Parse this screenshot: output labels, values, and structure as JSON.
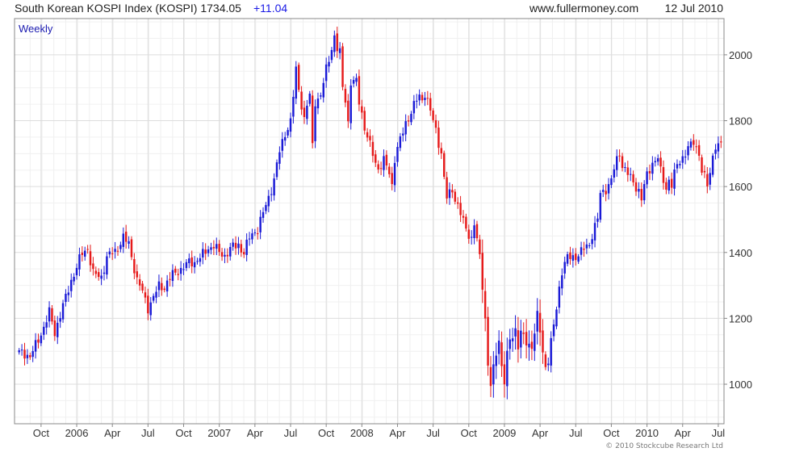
{
  "header": {
    "title": "South Korean KOSPI Index (KOSPI) 1734.05",
    "change": "+11.04",
    "site": "www.fullermoney.com",
    "date": "12 Jul 2010"
  },
  "footer": {
    "copyright": "© 2010 Stockcube Research Ltd"
  },
  "colors": {
    "up": "#1a1ad6",
    "down": "#e61a1a",
    "grid": "#dddddd",
    "frame": "#888888",
    "change": "#1a1ae6",
    "period_label": "#1a1ab0"
  },
  "chart_data": {
    "type": "candlestick",
    "period_label": "Weekly",
    "ylim": [
      880,
      2110
    ],
    "y_ticks": [
      1000,
      1200,
      1400,
      1600,
      1800,
      2000
    ],
    "y_tick_labels": [
      "1000",
      "1200",
      "1400",
      "1600",
      "1800",
      "2000"
    ],
    "x_tick_labels": [
      "Oct",
      "2006",
      "Apr",
      "Jul",
      "Oct",
      "2007",
      "Apr",
      "Jul",
      "Oct",
      "2008",
      "Apr",
      "Jul",
      "Oct",
      "2009",
      "Apr",
      "Jul",
      "Oct",
      "2010",
      "Apr",
      "Jul"
    ],
    "x_tick_weeks": [
      8,
      21,
      34,
      47,
      60,
      73,
      86,
      99,
      112,
      125,
      138,
      151,
      164,
      177,
      190,
      203,
      216,
      229,
      242,
      255
    ],
    "grid": true,
    "close_path": [
      [
        0,
        1095
      ],
      [
        4,
        1080
      ],
      [
        8,
        1160
      ],
      [
        11,
        1215
      ],
      [
        13,
        1150
      ],
      [
        16,
        1240
      ],
      [
        19,
        1320
      ],
      [
        21,
        1355
      ],
      [
        23,
        1390
      ],
      [
        25,
        1410
      ],
      [
        27,
        1340
      ],
      [
        30,
        1330
      ],
      [
        32,
        1380
      ],
      [
        35,
        1400
      ],
      [
        38,
        1450
      ],
      [
        40,
        1430
      ],
      [
        43,
        1310
      ],
      [
        45,
        1275
      ],
      [
        47,
        1235
      ],
      [
        49,
        1270
      ],
      [
        51,
        1300
      ],
      [
        53,
        1290
      ],
      [
        56,
        1330
      ],
      [
        58,
        1350
      ],
      [
        60,
        1360
      ],
      [
        62,
        1370
      ],
      [
        64,
        1365
      ],
      [
        66,
        1380
      ],
      [
        69,
        1420
      ],
      [
        71,
        1425
      ],
      [
        73,
        1395
      ],
      [
        75,
        1385
      ],
      [
        78,
        1420
      ],
      [
        80,
        1430
      ],
      [
        82,
        1400
      ],
      [
        84,
        1440
      ],
      [
        87,
        1470
      ],
      [
        90,
        1550
      ],
      [
        93,
        1620
      ],
      [
        95,
        1700
      ],
      [
        97,
        1760
      ],
      [
        99,
        1800
      ],
      [
        101,
        1960
      ],
      [
        102,
        1900
      ],
      [
        104,
        1800
      ],
      [
        105,
        1840
      ],
      [
        106,
        1870
      ],
      [
        107,
        1720
      ],
      [
        108,
        1860
      ],
      [
        110,
        1880
      ],
      [
        112,
        1960
      ],
      [
        114,
        2020
      ],
      [
        115,
        2050
      ],
      [
        116,
        2010
      ],
      [
        117,
        2000
      ],
      [
        118,
        1900
      ],
      [
        119,
        1870
      ],
      [
        120,
        1800
      ],
      [
        121,
        1920
      ],
      [
        123,
        1920
      ],
      [
        124,
        1860
      ],
      [
        125,
        1820
      ],
      [
        126,
        1770
      ],
      [
        128,
        1720
      ],
      [
        130,
        1680
      ],
      [
        131,
        1660
      ],
      [
        133,
        1680
      ],
      [
        135,
        1640
      ],
      [
        136,
        1600
      ],
      [
        137,
        1680
      ],
      [
        139,
        1740
      ],
      [
        141,
        1800
      ],
      [
        143,
        1830
      ],
      [
        145,
        1860
      ],
      [
        146,
        1870
      ],
      [
        147,
        1860
      ],
      [
        148,
        1880
      ],
      [
        150,
        1830
      ],
      [
        152,
        1780
      ],
      [
        154,
        1700
      ],
      [
        155,
        1620
      ],
      [
        156,
        1560
      ],
      [
        158,
        1590
      ],
      [
        159,
        1560
      ],
      [
        161,
        1520
      ],
      [
        163,
        1480
      ],
      [
        165,
        1440
      ],
      [
        166,
        1480
      ],
      [
        167,
        1430
      ],
      [
        168,
        1380
      ],
      [
        169,
        1300
      ],
      [
        170,
        1200
      ],
      [
        171,
        1060
      ],
      [
        172,
        1000
      ],
      [
        173,
        1050
      ],
      [
        174,
        1100
      ],
      [
        175,
        1140
      ],
      [
        176,
        1050
      ],
      [
        177,
        1000
      ],
      [
        178,
        1080
      ],
      [
        179,
        1130
      ],
      [
        181,
        1170
      ],
      [
        182,
        1120
      ],
      [
        183,
        1160
      ],
      [
        185,
        1130
      ],
      [
        187,
        1110
      ],
      [
        188,
        1150
      ],
      [
        189,
        1200
      ],
      [
        190,
        1160
      ],
      [
        191,
        1100
      ],
      [
        192,
        1060
      ],
      [
        193,
        1080
      ],
      [
        195,
        1180
      ],
      [
        196,
        1230
      ],
      [
        197,
        1290
      ],
      [
        198,
        1340
      ],
      [
        200,
        1380
      ],
      [
        202,
        1390
      ],
      [
        204,
        1400
      ],
      [
        206,
        1410
      ],
      [
        208,
        1420
      ],
      [
        209,
        1450
      ],
      [
        211,
        1500
      ],
      [
        212,
        1580
      ],
      [
        214,
        1600
      ],
      [
        216,
        1620
      ],
      [
        217,
        1650
      ],
      [
        219,
        1700
      ],
      [
        220,
        1660
      ],
      [
        222,
        1640
      ],
      [
        224,
        1620
      ],
      [
        226,
        1590
      ],
      [
        227,
        1560
      ],
      [
        229,
        1630
      ],
      [
        231,
        1670
      ],
      [
        233,
        1690
      ],
      [
        234,
        1650
      ],
      [
        236,
        1600
      ],
      [
        237,
        1620
      ],
      [
        238,
        1600
      ],
      [
        240,
        1660
      ],
      [
        242,
        1690
      ],
      [
        244,
        1720
      ],
      [
        246,
        1740
      ],
      [
        247,
        1720
      ],
      [
        248,
        1700
      ],
      [
        249,
        1640
      ],
      [
        250,
        1620
      ],
      [
        251,
        1600
      ],
      [
        252,
        1640
      ],
      [
        253,
        1700
      ],
      [
        254,
        1730
      ],
      [
        255,
        1723
      ],
      [
        256,
        1734
      ]
    ],
    "last_close": 1734.05,
    "last_change": 11.04
  }
}
